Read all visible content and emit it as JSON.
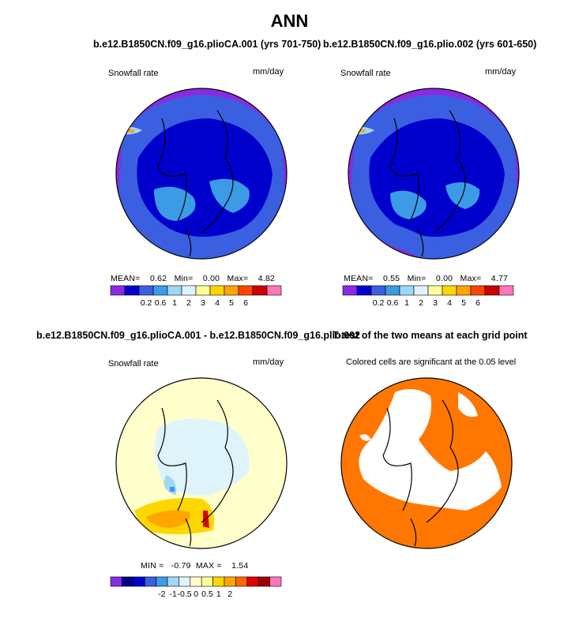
{
  "figure": {
    "title": "ANN"
  },
  "panels": [
    {
      "id": "case1",
      "title": "b.e12.B1850CN.f09_g16.plioCA.001 (yrs 701-750)",
      "left_label": "Snowfall rate",
      "right_label": "mm/day",
      "stats": {
        "mean_label": "MEAN=",
        "mean": "0.62",
        "min_label": "Min=",
        "min": "0.00",
        "max_label": "Max=",
        "max": "4.82"
      }
    },
    {
      "id": "case2",
      "title": "b.e12.B1850CN.f09_g16.plio.002 (yrs 601-650)",
      "left_label": "Snowfall rate",
      "right_label": "mm/day",
      "stats": {
        "mean_label": "MEAN=",
        "mean": "0.55",
        "min_label": "Min=",
        "min": "0.00",
        "max_label": "Max=",
        "max": "4.77"
      }
    },
    {
      "id": "diff",
      "title": "b.e12.B1850CN.f09_g16.plioCA.001 - b.e12.B1850CN.f09_g16.plio.002",
      "left_label": "Snowfall rate",
      "right_label": "mm/day",
      "stats": {
        "min_label": "MIN =",
        "min": "-0.79",
        "max_label": "MAX =",
        "max": "1.54"
      }
    },
    {
      "id": "ttest",
      "title": "T-test of the two means at each grid point",
      "left_label": "Colored cells are significant at the 0.05 level"
    }
  ],
  "chart_data": [
    {
      "type": "heatmap",
      "panel": "case1",
      "projection": "north polar stereographic",
      "variable": "Snowfall rate",
      "units": "mm/day",
      "mean": 0.62,
      "min": 0.0,
      "max": 4.82,
      "colorbar": {
        "boundaries": [
          0.2,
          0.6,
          1,
          2,
          3,
          4,
          5,
          6
        ],
        "tick_labels": [
          "0.2",
          "0.6",
          "1",
          "2",
          "3",
          "4",
          "5",
          "6"
        ],
        "colors": [
          "#8a2be2",
          "#0000cd",
          "#3a5fe0",
          "#3c9be6",
          "#9fd7f7",
          "#dff3fb",
          "#ffff99",
          "#ffd700",
          "#ffa500",
          "#ff4500",
          "#cc0000",
          "#ff77bb"
        ]
      }
    },
    {
      "type": "heatmap",
      "panel": "case2",
      "projection": "north polar stereographic",
      "variable": "Snowfall rate",
      "units": "mm/day",
      "mean": 0.55,
      "min": 0.0,
      "max": 4.77,
      "colorbar": {
        "boundaries": [
          0.2,
          0.6,
          1,
          2,
          3,
          4,
          5,
          6
        ],
        "tick_labels": [
          "0.2",
          "0.6",
          "1",
          "2",
          "3",
          "4",
          "5",
          "6"
        ],
        "colors": [
          "#8a2be2",
          "#0000cd",
          "#3a5fe0",
          "#3c9be6",
          "#9fd7f7",
          "#dff3fb",
          "#ffff99",
          "#ffd700",
          "#ffa500",
          "#ff4500",
          "#cc0000",
          "#ff77bb"
        ]
      }
    },
    {
      "type": "heatmap",
      "panel": "diff",
      "projection": "north polar stereographic",
      "variable": "Snowfall rate difference",
      "units": "mm/day",
      "min": -0.79,
      "max": 1.54,
      "colorbar": {
        "tick_labels": [
          "-2",
          "-1",
          "-0.5",
          "0",
          "0.5",
          "1",
          "2"
        ],
        "colors": [
          "#8a2be2",
          "#00008b",
          "#0000cd",
          "#3a5fe0",
          "#3c9be6",
          "#9fd7f7",
          "#dff3fb",
          "#ffffcc",
          "#ffff99",
          "#ffd700",
          "#ffa500",
          "#ff6600",
          "#e00000",
          "#a00000",
          "#ff77bb"
        ]
      }
    },
    {
      "type": "heatmap",
      "panel": "ttest",
      "projection": "north polar stereographic",
      "significance_color": "#ff7700",
      "note": "Colored cells are significant at the 0.05 level"
    }
  ],
  "colors": {
    "c_purple": "#8a2be2",
    "c_navy": "#0000cd",
    "c_blue": "#3a5fe0",
    "c_sky": "#3c9be6",
    "c_light": "#9fd7f7",
    "c_pale": "#dff3fb",
    "c_cream": "#ffffcc",
    "c_yellow": "#ffd700",
    "c_orange": "#ffa500",
    "c_red": "#ff4500",
    "c_sig": "#ff7700"
  }
}
